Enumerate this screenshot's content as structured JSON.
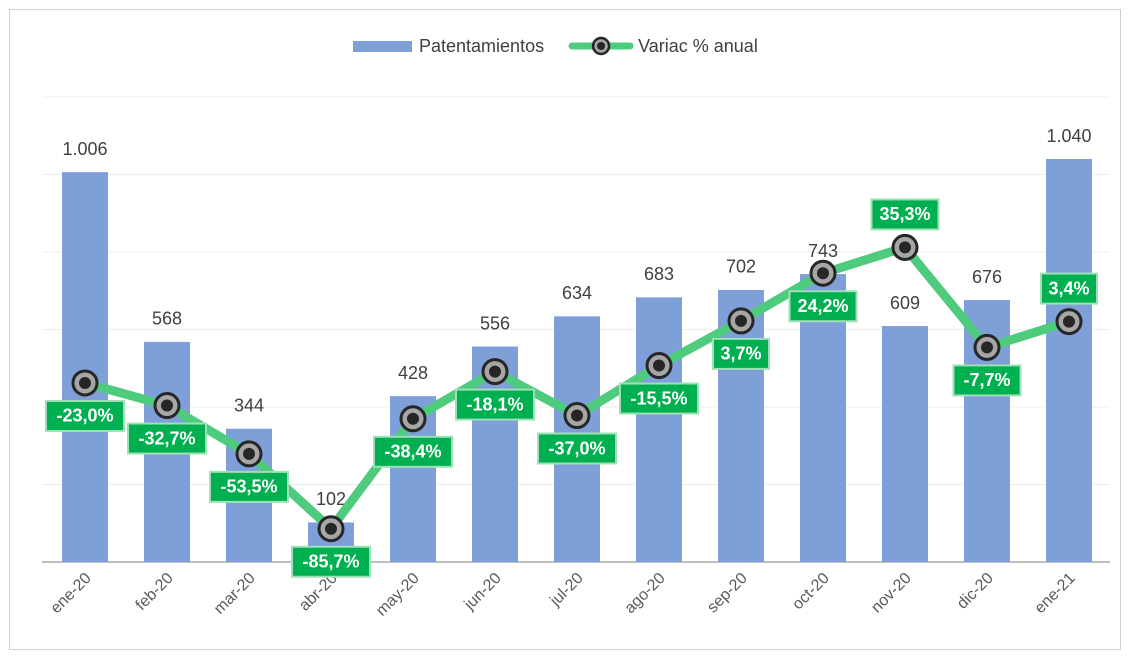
{
  "chart_data": {
    "type": "bar+line",
    "categories": [
      "ene-20",
      "feb-20",
      "mar-20",
      "abr-20",
      "may-20",
      "jun-20",
      "jul-20",
      "ago-20",
      "sep-20",
      "oct-20",
      "nov-20",
      "dic-20",
      "ene-21"
    ],
    "series": [
      {
        "name": "Patentamientos",
        "type": "bar",
        "color": "#7f9fd9",
        "values": [
          1006,
          568,
          344,
          102,
          428,
          556,
          634,
          683,
          702,
          743,
          609,
          676,
          1040
        ],
        "value_labels": [
          "1.006",
          "568",
          "344",
          "102",
          "428",
          "556",
          "634",
          "683",
          "702",
          "743",
          "609",
          "676",
          "1.040"
        ]
      },
      {
        "name": "Variac % anual",
        "type": "line",
        "axis": "y2",
        "color": "#4fcb7e",
        "values": [
          -23.0,
          -32.7,
          -53.5,
          -85.7,
          -38.4,
          -18.1,
          -37.0,
          -15.5,
          3.7,
          24.2,
          35.3,
          -7.7,
          3.4
        ],
        "value_labels": [
          "-23,0%",
          "-32,7%",
          "-53,5%",
          "-85,7%",
          "-38,4%",
          "-18,1%",
          "-37,0%",
          "-15,5%",
          "3,7%",
          "24,2%",
          "35,3%",
          "-7,7%",
          "3,4%"
        ]
      }
    ],
    "ylim": [
      0,
      1200
    ],
    "yticks": [
      0,
      200,
      400,
      600,
      800,
      1000,
      1200
    ],
    "y2lim": [
      -100,
      100
    ],
    "grid": true,
    "legend": "top"
  }
}
